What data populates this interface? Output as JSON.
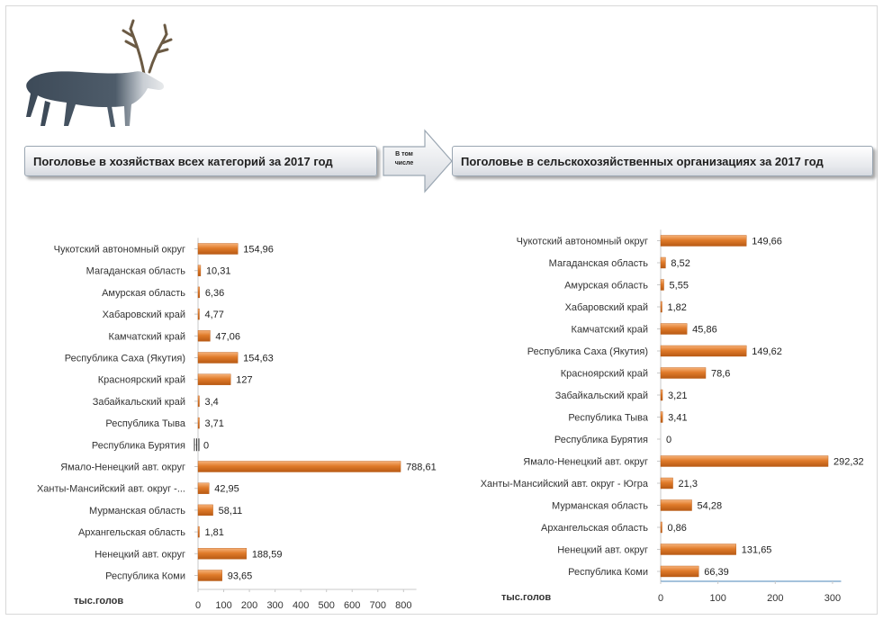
{
  "left_panel": {
    "title": "Поголовье в хозяйствах всех категорий за 2017 год",
    "unit_label": "тыс.голов"
  },
  "arrow": {
    "line1": "В том",
    "line2": "числе"
  },
  "right_panel": {
    "title": "Поголовье в сельскохозяйственных организациях за 2017 год",
    "unit_label": "тыс.голов"
  },
  "colors": {
    "bar": "#e07b2a",
    "bar_light": "#f6b27a",
    "bar_dark": "#b85a14",
    "axis": "#4a86b8"
  },
  "chart_data": [
    {
      "type": "bar",
      "orientation": "horizontal",
      "title": "Поголовье в хозяйствах всех категорий за 2017 год",
      "xlabel": "тыс.голов",
      "xlim": [
        0,
        850
      ],
      "xticks": [
        0,
        100,
        200,
        300,
        400,
        500,
        600,
        700,
        800
      ],
      "categories": [
        "Чукотский автономный округ",
        "Магаданская область",
        "Амурская область",
        "Хабаровский край",
        "Камчатский край",
        "Республика Саха (Якутия)",
        "Красноярский край",
        "Забайкальский край",
        "Республика Тыва",
        "Республика Бурятия",
        "Ямало-Ненецкий авт. округ",
        "Ханты-Мансийский авт. округ -...",
        "Мурманская область",
        "Архангельская область",
        "Ненецкий авт. округ",
        "Республика Коми"
      ],
      "values": [
        154.96,
        10.31,
        6.36,
        4.77,
        47.06,
        154.63,
        127,
        3.4,
        3.71,
        0,
        788.61,
        42.95,
        58.11,
        1.81,
        188.59,
        93.65
      ],
      "value_labels": [
        "154,96",
        "10,31",
        "6,36",
        "4,77",
        "47,06",
        "154,63",
        "127",
        "3,4",
        "3,71",
        "0",
        "788,61",
        "42,95",
        "58,11",
        "1,81",
        "188,59",
        "93,65"
      ]
    },
    {
      "type": "bar",
      "orientation": "horizontal",
      "title": "Поголовье в сельскохозяйственных организациях за 2017 год",
      "xlabel": "тыс.голов",
      "xlim": [
        0,
        315
      ],
      "xticks": [
        0,
        100,
        200,
        300
      ],
      "categories": [
        "Чукотский автономный округ",
        "Магаданская область",
        "Амурская область",
        "Хабаровский край",
        "Камчатский край",
        "Республика Саха (Якутия)",
        "Красноярский край",
        "Забайкальский край",
        "Республика Тыва",
        "Республика Бурятия",
        "Ямало-Ненецкий авт. округ",
        "Ханты-Мансийский авт. округ - Югра",
        "Мурманская область",
        "Архангельская область",
        "Ненецкий авт. округ",
        "Республика Коми"
      ],
      "values": [
        149.66,
        8.52,
        5.55,
        1.82,
        45.86,
        149.62,
        78.6,
        3.21,
        3.41,
        0,
        292.32,
        21.3,
        54.28,
        0.86,
        131.65,
        66.39
      ],
      "value_labels": [
        "149,66",
        "8,52",
        "5,55",
        "1,82",
        "45,86",
        "149,62",
        "78,6",
        "3,21",
        "3,41",
        "0",
        "292,32",
        "21,3",
        "54,28",
        "0,86",
        "131,65",
        "66,39"
      ]
    }
  ]
}
